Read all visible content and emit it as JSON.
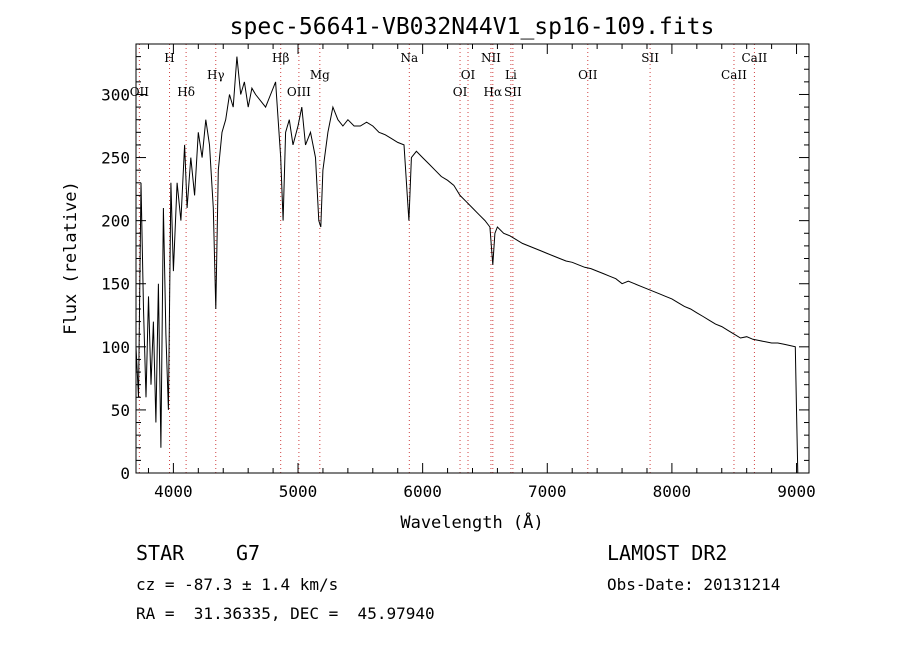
{
  "chart_data": {
    "type": "line",
    "title": "spec-56641-VB032N44V1_sp16-109.fits",
    "xlabel": "Wavelength (Å)",
    "ylabel": "Flux (relative)",
    "xlim": [
      3700,
      9100
    ],
    "ylim": [
      0,
      340
    ],
    "x_ticks": [
      4000,
      5000,
      6000,
      7000,
      8000,
      9000
    ],
    "y_ticks": [
      0,
      50,
      100,
      150,
      200,
      250,
      300
    ],
    "x_tick_labels": [
      "4000",
      "5000",
      "6000",
      "7000",
      "8000",
      "9000"
    ],
    "y_tick_labels": [
      "0",
      "50",
      "100",
      "150",
      "200",
      "250",
      "300"
    ],
    "grid": false,
    "series": [
      {
        "points": [
          [
            3700,
            100
          ],
          [
            3720,
            60
          ],
          [
            3740,
            230
          ],
          [
            3760,
            130
          ],
          [
            3780,
            60
          ],
          [
            3800,
            140
          ],
          [
            3820,
            70
          ],
          [
            3840,
            120
          ],
          [
            3860,
            40
          ],
          [
            3880,
            150
          ],
          [
            3900,
            20
          ],
          [
            3920,
            210
          ],
          [
            3940,
            110
          ],
          [
            3960,
            50
          ],
          [
            3980,
            230
          ],
          [
            4000,
            160
          ],
          [
            4030,
            230
          ],
          [
            4060,
            200
          ],
          [
            4090,
            260
          ],
          [
            4110,
            210
          ],
          [
            4140,
            250
          ],
          [
            4170,
            220
          ],
          [
            4200,
            270
          ],
          [
            4230,
            250
          ],
          [
            4260,
            280
          ],
          [
            4290,
            260
          ],
          [
            4320,
            210
          ],
          [
            4340,
            130
          ],
          [
            4360,
            240
          ],
          [
            4390,
            270
          ],
          [
            4420,
            280
          ],
          [
            4450,
            300
          ],
          [
            4480,
            290
          ],
          [
            4510,
            330
          ],
          [
            4540,
            300
          ],
          [
            4570,
            310
          ],
          [
            4600,
            290
          ],
          [
            4630,
            305
          ],
          [
            4660,
            300
          ],
          [
            4700,
            295
          ],
          [
            4740,
            290
          ],
          [
            4780,
            300
          ],
          [
            4820,
            310
          ],
          [
            4861,
            250
          ],
          [
            4880,
            200
          ],
          [
            4900,
            270
          ],
          [
            4930,
            280
          ],
          [
            4960,
            260
          ],
          [
            5000,
            275
          ],
          [
            5030,
            290
          ],
          [
            5060,
            260
          ],
          [
            5100,
            270
          ],
          [
            5140,
            250
          ],
          [
            5167,
            200
          ],
          [
            5183,
            195
          ],
          [
            5200,
            240
          ],
          [
            5240,
            270
          ],
          [
            5280,
            290
          ],
          [
            5320,
            280
          ],
          [
            5360,
            275
          ],
          [
            5400,
            280
          ],
          [
            5450,
            275
          ],
          [
            5500,
            275
          ],
          [
            5550,
            278
          ],
          [
            5600,
            275
          ],
          [
            5650,
            270
          ],
          [
            5700,
            268
          ],
          [
            5750,
            265
          ],
          [
            5800,
            262
          ],
          [
            5850,
            260
          ],
          [
            5890,
            200
          ],
          [
            5910,
            250
          ],
          [
            5950,
            255
          ],
          [
            6000,
            250
          ],
          [
            6050,
            245
          ],
          [
            6100,
            240
          ],
          [
            6150,
            235
          ],
          [
            6200,
            232
          ],
          [
            6250,
            228
          ],
          [
            6300,
            220
          ],
          [
            6350,
            215
          ],
          [
            6400,
            210
          ],
          [
            6450,
            205
          ],
          [
            6500,
            200
          ],
          [
            6540,
            195
          ],
          [
            6563,
            165
          ],
          [
            6580,
            190
          ],
          [
            6600,
            195
          ],
          [
            6650,
            190
          ],
          [
            6700,
            188
          ],
          [
            6750,
            185
          ],
          [
            6800,
            182
          ],
          [
            6850,
            180
          ],
          [
            6900,
            178
          ],
          [
            6950,
            176
          ],
          [
            7000,
            174
          ],
          [
            7050,
            172
          ],
          [
            7100,
            170
          ],
          [
            7150,
            168
          ],
          [
            7200,
            167
          ],
          [
            7250,
            165
          ],
          [
            7300,
            163
          ],
          [
            7350,
            162
          ],
          [
            7400,
            160
          ],
          [
            7450,
            158
          ],
          [
            7500,
            156
          ],
          [
            7550,
            154
          ],
          [
            7600,
            150
          ],
          [
            7650,
            152
          ],
          [
            7700,
            150
          ],
          [
            7750,
            148
          ],
          [
            7800,
            146
          ],
          [
            7850,
            144
          ],
          [
            7900,
            142
          ],
          [
            7950,
            140
          ],
          [
            8000,
            138
          ],
          [
            8050,
            135
          ],
          [
            8100,
            132
          ],
          [
            8150,
            130
          ],
          [
            8200,
            127
          ],
          [
            8250,
            124
          ],
          [
            8300,
            121
          ],
          [
            8350,
            118
          ],
          [
            8400,
            116
          ],
          [
            8450,
            113
          ],
          [
            8500,
            110
          ],
          [
            8550,
            107
          ],
          [
            8600,
            108
          ],
          [
            8650,
            106
          ],
          [
            8700,
            105
          ],
          [
            8750,
            104
          ],
          [
            8800,
            103
          ],
          [
            8850,
            103
          ],
          [
            8900,
            102
          ],
          [
            8950,
            101
          ],
          [
            8990,
            100
          ],
          [
            9000,
            50
          ],
          [
            9010,
            0
          ]
        ]
      }
    ],
    "lines": [
      {
        "label": "OII",
        "wavelength": 3727,
        "row": 2
      },
      {
        "label": "H",
        "wavelength": 3969,
        "row": 0
      },
      {
        "label": "Hδ",
        "wavelength": 4102,
        "row": 2
      },
      {
        "label": "Hγ",
        "wavelength": 4340,
        "row": 1
      },
      {
        "label": "Hβ",
        "wavelength": 4861,
        "row": 0
      },
      {
        "label": "OIII",
        "wavelength": 5007,
        "row": 2
      },
      {
        "label": "Mg",
        "wavelength": 5175,
        "row": 1
      },
      {
        "label": "Na",
        "wavelength": 5893,
        "row": 0
      },
      {
        "label": "OI",
        "wavelength": 6300,
        "row": 2
      },
      {
        "label": "OI",
        "wavelength": 6364,
        "row": 1
      },
      {
        "label": "NII",
        "wavelength": 6548,
        "row": 0
      },
      {
        "label": "Hα",
        "wavelength": 6563,
        "row": 2
      },
      {
        "label": "Li",
        "wavelength": 6708,
        "row": 1
      },
      {
        "label": "SII",
        "wavelength": 6724,
        "row": 2
      },
      {
        "label": "OII",
        "wavelength": 7325,
        "row": 1
      },
      {
        "label": "SII",
        "wavelength": 7825,
        "row": 0
      },
      {
        "label": "CaII",
        "wavelength": 8498,
        "row": 1
      },
      {
        "label": "CaII",
        "wavelength": 8662,
        "row": 0
      }
    ]
  },
  "info": {
    "object_class": "STAR",
    "subclass": "G7",
    "survey": "LAMOST DR2",
    "cz": "cz = -87.3 ± 1.4 km/s",
    "obs_date": "Obs-Date: 20131214",
    "coords": "RA =  31.36335, DEC =  45.97940"
  }
}
